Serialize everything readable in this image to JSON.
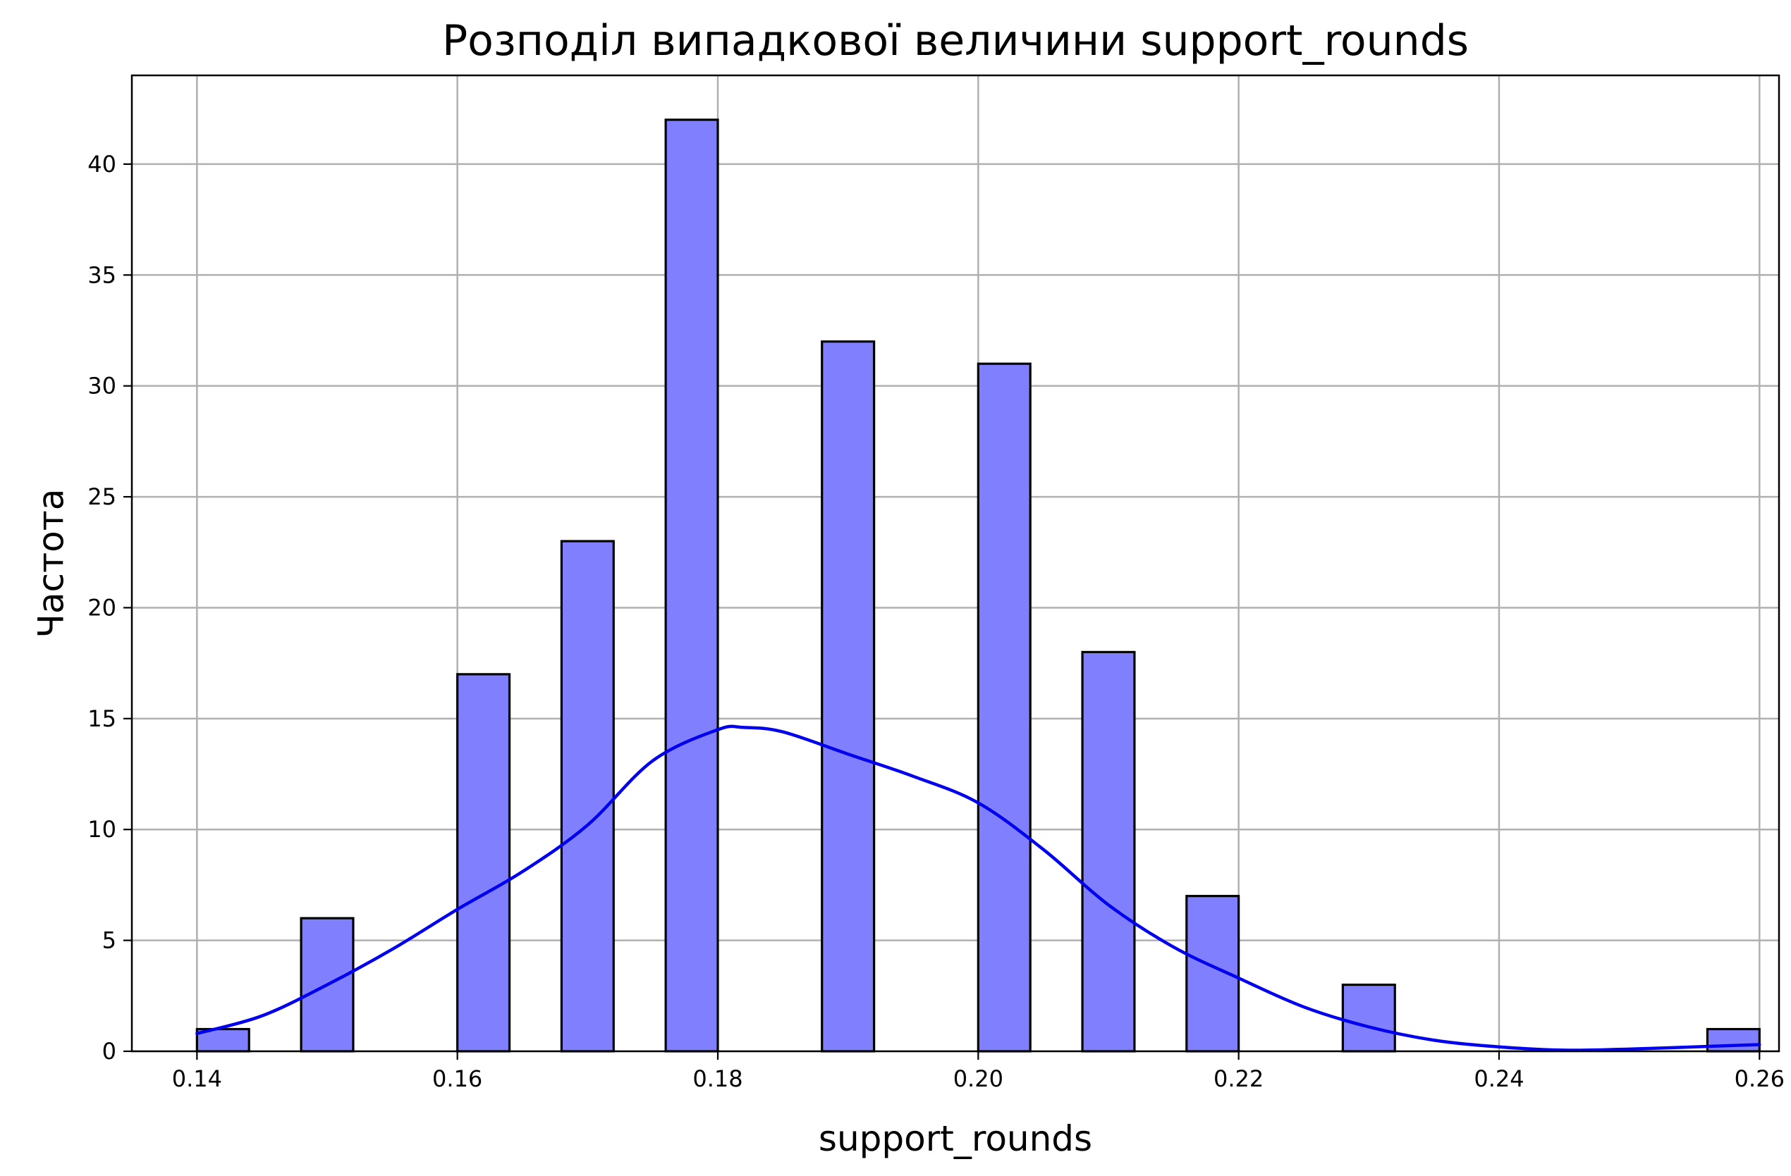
{
  "chart_data": {
    "type": "bar",
    "title": "Розподіл випадкової величини support_rounds",
    "xlabel": "support_rounds",
    "ylabel": "Частота",
    "xlim": [
      0.135,
      0.2615
    ],
    "ylim": [
      0,
      44
    ],
    "xticks": [
      0.14,
      0.16,
      0.18,
      0.2,
      0.22,
      0.24,
      0.26
    ],
    "xtick_labels": [
      "0.14",
      "0.16",
      "0.18",
      "0.20",
      "0.22",
      "0.24",
      "0.26"
    ],
    "yticks": [
      0,
      5,
      10,
      15,
      20,
      25,
      30,
      35,
      40
    ],
    "ytick_labels": [
      "0",
      "5",
      "10",
      "15",
      "20",
      "25",
      "30",
      "35",
      "40"
    ],
    "grid": true,
    "bin_edges": [
      0.14,
      0.144,
      0.148,
      0.152,
      0.156,
      0.16,
      0.164,
      0.168,
      0.172,
      0.176,
      0.18,
      0.184,
      0.188,
      0.192,
      0.196,
      0.2,
      0.204,
      0.208,
      0.212,
      0.216,
      0.22,
      0.224,
      0.228,
      0.232,
      0.236,
      0.24,
      0.244,
      0.248,
      0.252,
      0.256,
      0.26
    ],
    "counts": [
      1,
      0,
      6,
      0,
      0,
      17,
      0,
      23,
      0,
      42,
      0,
      0,
      32,
      0,
      0,
      31,
      0,
      18,
      0,
      7,
      0,
      0,
      3,
      0,
      0,
      0,
      0,
      0,
      0,
      1
    ],
    "bar_color": "#8080ff",
    "bar_edge_color": "#000000",
    "kde": {
      "color": "#0000ee",
      "x": [
        0.14,
        0.145,
        0.15,
        0.155,
        0.16,
        0.165,
        0.17,
        0.175,
        0.18,
        0.182,
        0.185,
        0.19,
        0.195,
        0.2,
        0.205,
        0.21,
        0.215,
        0.22,
        0.225,
        0.23,
        0.235,
        0.24,
        0.245,
        0.25,
        0.255,
        0.26
      ],
      "y": [
        0.8,
        1.6,
        3.0,
        4.6,
        6.4,
        8.1,
        10.2,
        13.1,
        14.5,
        14.6,
        14.4,
        13.4,
        12.4,
        11.2,
        9.1,
        6.6,
        4.7,
        3.3,
        2.0,
        1.1,
        0.5,
        0.2,
        0.05,
        0.1,
        0.2,
        0.3
      ]
    }
  }
}
